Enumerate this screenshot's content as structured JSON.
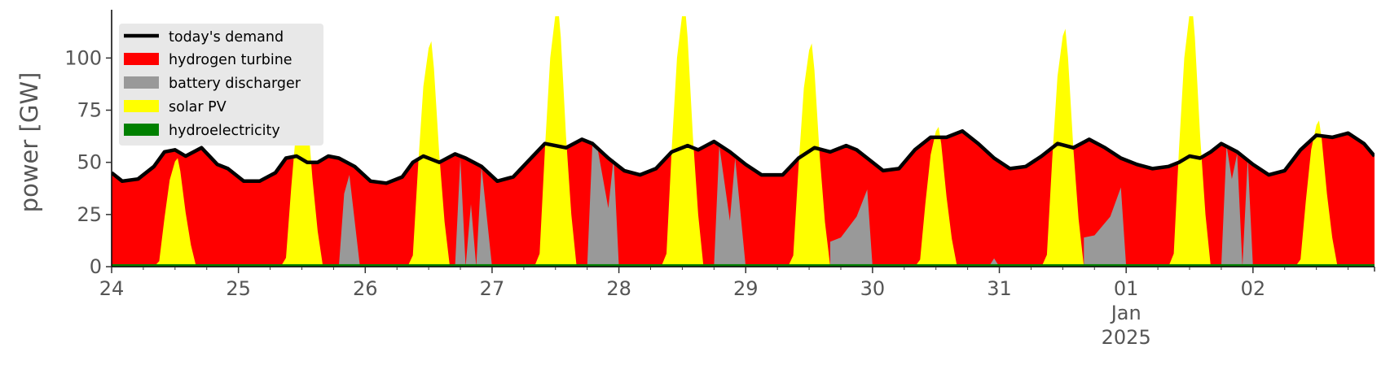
{
  "colors": {
    "background": "#ffffff",
    "legend_bg": "#e8e8e8",
    "tick_text": "#555555",
    "hydrogen turbine": "#ff0000",
    "battery discharger": "#999999",
    "solar PV": "#ffff00",
    "hydroelectricity": "#008000",
    "today's demand": "#000000"
  },
  "chart_data": {
    "type": "area",
    "ylabel": "power [GW]",
    "xlabel": "",
    "title": "",
    "ylim": [
      0,
      120
    ],
    "xlim": [
      "2024-12-24 00:00",
      "2025-01-02 23:00"
    ],
    "yticks": [
      0,
      25,
      50,
      75,
      100
    ],
    "xticks": [
      {
        "at": "2024-12-24",
        "label": "24",
        "sublabels": []
      },
      {
        "at": "2024-12-25",
        "label": "25",
        "sublabels": []
      },
      {
        "at": "2024-12-26",
        "label": "26",
        "sublabels": []
      },
      {
        "at": "2024-12-27",
        "label": "27",
        "sublabels": []
      },
      {
        "at": "2024-12-28",
        "label": "28",
        "sublabels": []
      },
      {
        "at": "2024-12-29",
        "label": "29",
        "sublabels": []
      },
      {
        "at": "2024-12-30",
        "label": "30",
        "sublabels": []
      },
      {
        "at": "2024-12-31",
        "label": "31",
        "sublabels": []
      },
      {
        "at": "2025-01-01",
        "label": "01",
        "sublabels": [
          "Jan",
          "2025"
        ]
      },
      {
        "at": "2025-01-02",
        "label": "02",
        "sublabels": []
      }
    ],
    "legend": {
      "position": "top-left",
      "entries": [
        "today's demand",
        "hydrogen turbine",
        "battery discharger",
        "solar PV",
        "hydroelectricity"
      ]
    },
    "grid": false,
    "demand": {
      "name": "today's demand",
      "points": [
        [
          "2024-12-24 00:00",
          45
        ],
        [
          "2024-12-24 02:00",
          41
        ],
        [
          "2024-12-24 05:00",
          42
        ],
        [
          "2024-12-24 08:00",
          48
        ],
        [
          "2024-12-24 10:00",
          55
        ],
        [
          "2024-12-24 12:00",
          56
        ],
        [
          "2024-12-24 14:00",
          53
        ],
        [
          "2024-12-24 17:00",
          57
        ],
        [
          "2024-12-24 20:00",
          49
        ],
        [
          "2024-12-24 22:00",
          47
        ],
        [
          "2024-12-25 01:00",
          41
        ],
        [
          "2024-12-25 04:00",
          41
        ],
        [
          "2024-12-25 07:00",
          45
        ],
        [
          "2024-12-25 09:00",
          52
        ],
        [
          "2024-12-25 11:00",
          53
        ],
        [
          "2024-12-25 13:00",
          50
        ],
        [
          "2024-12-25 15:00",
          50
        ],
        [
          "2024-12-25 17:00",
          53
        ],
        [
          "2024-12-25 19:00",
          52
        ],
        [
          "2024-12-25 22:00",
          48
        ],
        [
          "2024-12-26 01:00",
          41
        ],
        [
          "2024-12-26 04:00",
          40
        ],
        [
          "2024-12-26 07:00",
          43
        ],
        [
          "2024-12-26 09:00",
          50
        ],
        [
          "2024-12-26 11:00",
          53
        ],
        [
          "2024-12-26 14:00",
          50
        ],
        [
          "2024-12-26 17:00",
          54
        ],
        [
          "2024-12-26 19:00",
          52
        ],
        [
          "2024-12-26 22:00",
          48
        ],
        [
          "2024-12-27 01:00",
          41
        ],
        [
          "2024-12-27 04:00",
          43
        ],
        [
          "2024-12-27 07:00",
          51
        ],
        [
          "2024-12-27 10:00",
          59
        ],
        [
          "2024-12-27 14:00",
          57
        ],
        [
          "2024-12-27 17:00",
          61
        ],
        [
          "2024-12-27 19:00",
          59
        ],
        [
          "2024-12-27 22:00",
          52
        ],
        [
          "2024-12-28 01:00",
          46
        ],
        [
          "2024-12-28 04:00",
          44
        ],
        [
          "2024-12-28 07:00",
          47
        ],
        [
          "2024-12-28 10:00",
          55
        ],
        [
          "2024-12-28 13:00",
          58
        ],
        [
          "2024-12-28 15:00",
          56
        ],
        [
          "2024-12-28 18:00",
          60
        ],
        [
          "2024-12-28 21:00",
          55
        ],
        [
          "2024-12-29 00:00",
          49
        ],
        [
          "2024-12-29 03:00",
          44
        ],
        [
          "2024-12-29 07:00",
          44
        ],
        [
          "2024-12-29 10:00",
          52
        ],
        [
          "2024-12-29 13:00",
          57
        ],
        [
          "2024-12-29 16:00",
          55
        ],
        [
          "2024-12-29 19:00",
          58
        ],
        [
          "2024-12-29 21:00",
          56
        ],
        [
          "2024-12-29 23:00",
          52
        ],
        [
          "2024-12-30 02:00",
          46
        ],
        [
          "2024-12-30 05:00",
          47
        ],
        [
          "2024-12-30 08:00",
          56
        ],
        [
          "2024-12-30 11:00",
          62
        ],
        [
          "2024-12-30 14:00",
          62
        ],
        [
          "2024-12-30 17:00",
          65
        ],
        [
          "2024-12-30 20:00",
          59
        ],
        [
          "2024-12-30 23:00",
          52
        ],
        [
          "2024-12-31 02:00",
          47
        ],
        [
          "2024-12-31 05:00",
          48
        ],
        [
          "2024-12-31 08:00",
          53
        ],
        [
          "2024-12-31 11:00",
          59
        ],
        [
          "2024-12-31 14:00",
          57
        ],
        [
          "2024-12-31 17:00",
          61
        ],
        [
          "2024-12-31 20:00",
          57
        ],
        [
          "2024-12-31 23:00",
          52
        ],
        [
          "2025-01-01 02:00",
          49
        ],
        [
          "2025-01-01 05:00",
          47
        ],
        [
          "2025-01-01 08:00",
          48
        ],
        [
          "2025-01-01 10:00",
          50
        ],
        [
          "2025-01-01 12:00",
          53
        ],
        [
          "2025-01-01 14:00",
          52
        ],
        [
          "2025-01-01 16:00",
          55
        ],
        [
          "2025-01-01 18:00",
          59
        ],
        [
          "2025-01-01 21:00",
          55
        ],
        [
          "2025-01-02 00:00",
          49
        ],
        [
          "2025-01-02 03:00",
          44
        ],
        [
          "2025-01-02 06:00",
          46
        ],
        [
          "2025-01-02 09:00",
          56
        ],
        [
          "2025-01-02 12:00",
          63
        ],
        [
          "2025-01-02 15:00",
          62
        ],
        [
          "2025-01-02 18:00",
          64
        ],
        [
          "2025-01-02 21:00",
          59
        ],
        [
          "2025-01-02 23:00",
          53
        ]
      ]
    },
    "solar_days": [
      {
        "day": "2024-12-24",
        "peak": 52
      },
      {
        "day": "2024-12-25",
        "peak": 85
      },
      {
        "day": "2024-12-26",
        "peak": 108
      },
      {
        "day": "2024-12-27",
        "peak": 125
      },
      {
        "day": "2024-12-28",
        "peak": 125
      },
      {
        "day": "2024-12-29",
        "peak": 107
      },
      {
        "day": "2024-12-30",
        "peak": 67
      },
      {
        "day": "2024-12-31",
        "peak": 114
      },
      {
        "day": "2025-01-01",
        "peak": 125
      },
      {
        "day": "2025-01-02",
        "peak": 70
      }
    ],
    "battery_shapes": [
      {
        "points": [
          [
            "2024-12-25 19:00",
            0
          ],
          [
            "2024-12-25 20:00",
            35
          ],
          [
            "2024-12-25 21:00",
            44
          ],
          [
            "2024-12-25 23:00",
            0
          ]
        ]
      },
      {
        "points": [
          [
            "2024-12-26 17:00",
            0
          ],
          [
            "2024-12-26 18:00",
            52
          ],
          [
            "2024-12-26 19:00",
            0
          ],
          [
            "2024-12-26 20:00",
            30
          ],
          [
            "2024-12-26 21:00",
            0
          ],
          [
            "2024-12-26 22:00",
            48
          ],
          [
            "2024-12-27 00:00",
            0
          ]
        ]
      },
      {
        "points": [
          [
            "2024-12-27 18:00",
            0
          ],
          [
            "2024-12-27 19:00",
            60
          ],
          [
            "2024-12-27 20:00",
            56
          ],
          [
            "2024-12-27 22:00",
            28
          ],
          [
            "2024-12-27 23:00",
            52
          ],
          [
            "2024-12-28 00:00",
            0
          ]
        ]
      },
      {
        "points": [
          [
            "2024-12-28 18:00",
            0
          ],
          [
            "2024-12-28 19:00",
            58
          ],
          [
            "2024-12-28 21:00",
            22
          ],
          [
            "2024-12-28 22:00",
            52
          ],
          [
            "2024-12-29 00:00",
            0
          ]
        ]
      },
      {
        "points": [
          [
            "2024-12-29 16:00",
            0
          ],
          [
            "2024-12-29 16:00",
            12
          ],
          [
            "2024-12-29 18:00",
            14
          ],
          [
            "2024-12-29 21:00",
            24
          ],
          [
            "2024-12-29 23:00",
            37
          ],
          [
            "2024-12-30 00:00",
            0
          ]
        ]
      },
      {
        "points": [
          [
            "2024-12-30 22:00",
            0
          ],
          [
            "2024-12-30 23:00",
            4
          ],
          [
            "2024-12-31 00:00",
            0
          ]
        ]
      },
      {
        "points": [
          [
            "2024-12-31 16:00",
            0
          ],
          [
            "2024-12-31 16:00",
            14
          ],
          [
            "2024-12-31 18:00",
            15
          ],
          [
            "2024-12-31 21:00",
            24
          ],
          [
            "2024-12-31 23:00",
            38
          ],
          [
            "2025-01-01 00:00",
            0
          ]
        ]
      },
      {
        "points": [
          [
            "2025-01-01 18:00",
            0
          ],
          [
            "2025-01-01 19:00",
            58
          ],
          [
            "2025-01-01 20:00",
            42
          ],
          [
            "2025-01-01 21:00",
            54
          ],
          [
            "2025-01-01 22:00",
            0
          ],
          [
            "2025-01-01 23:00",
            52
          ],
          [
            "2025-01-02 00:00",
            0
          ]
        ]
      }
    ],
    "hydro_level": 1.2
  }
}
